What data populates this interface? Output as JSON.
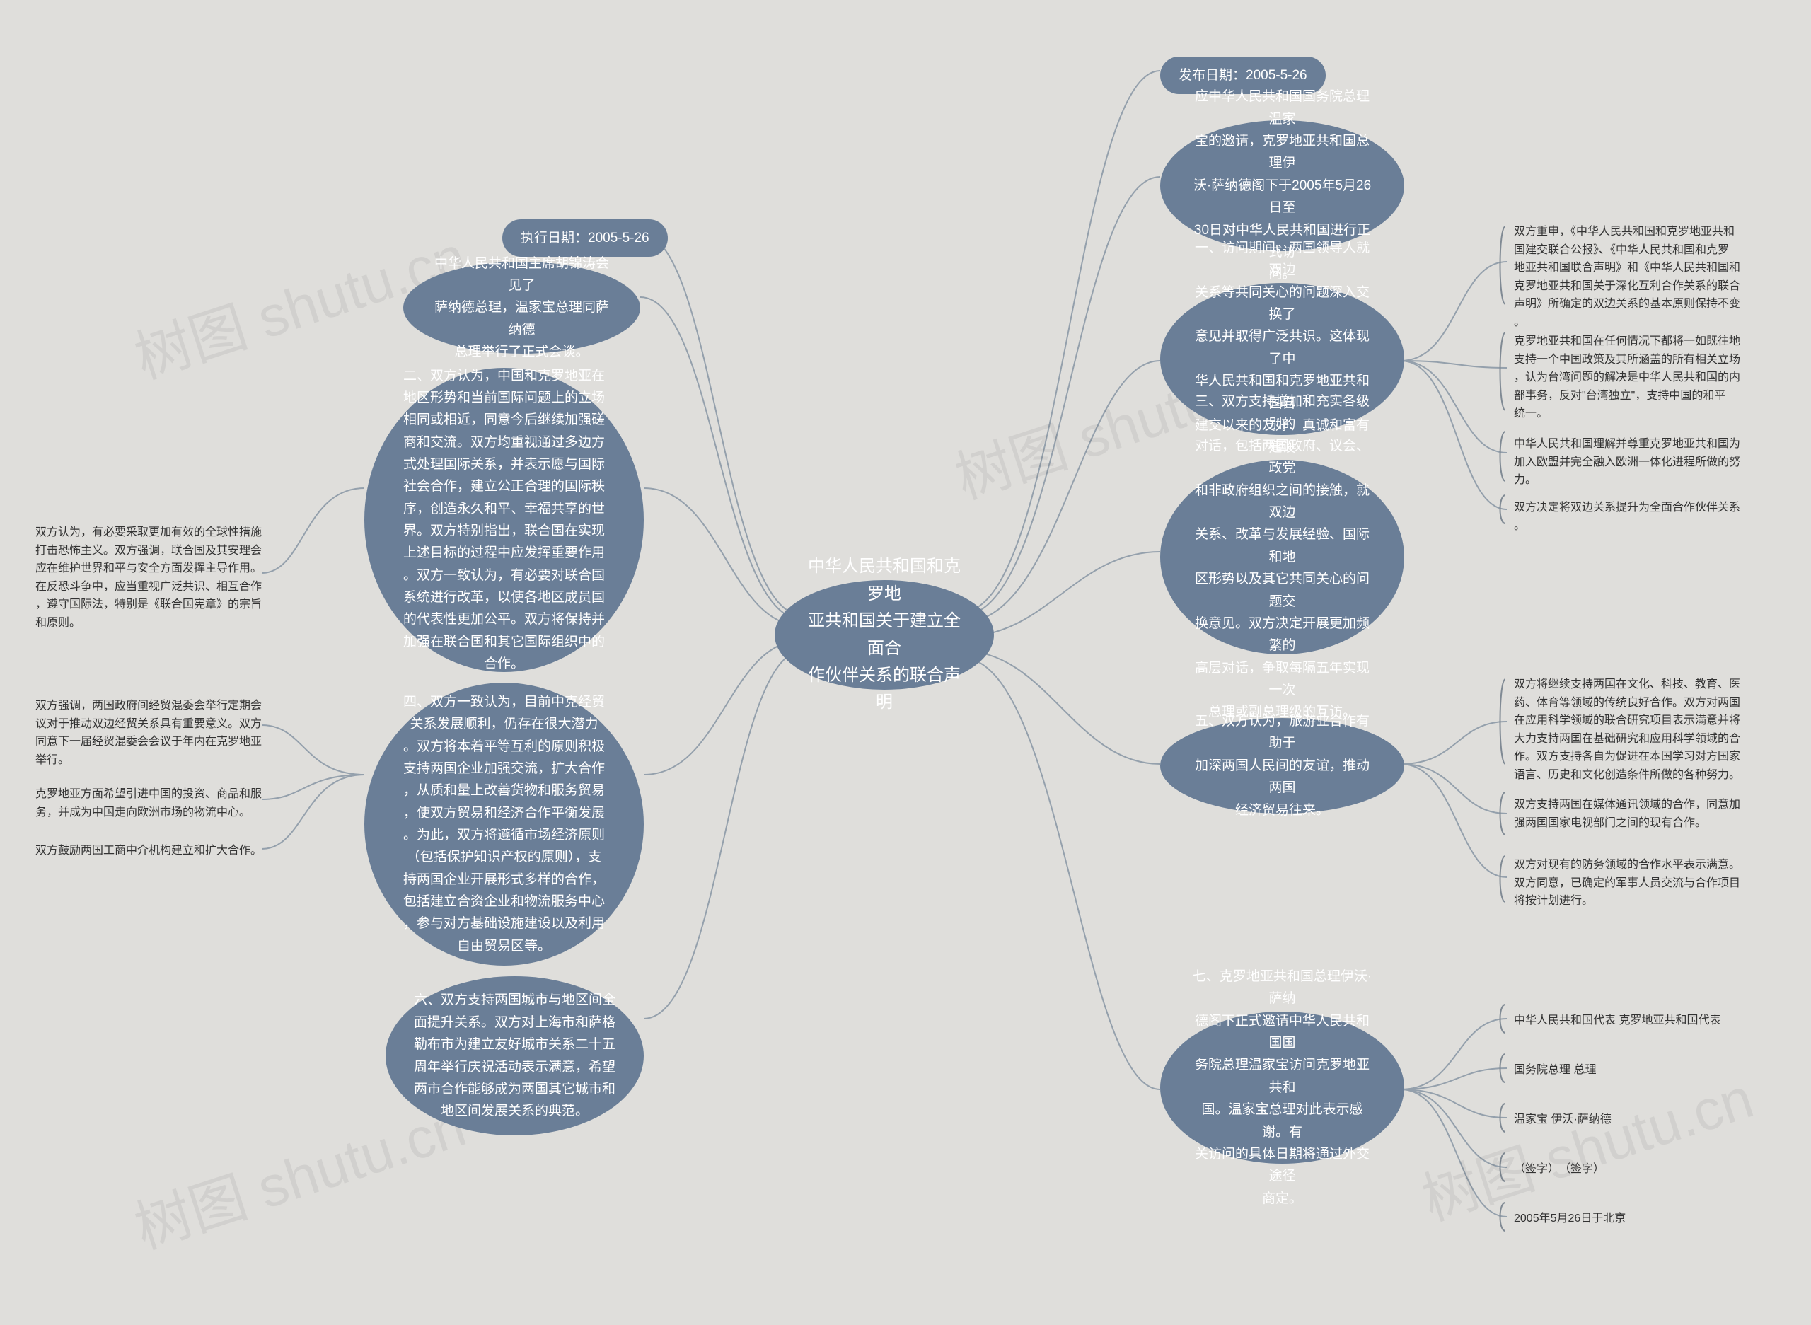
{
  "colors": {
    "bg": "#dfdedb",
    "node": "#6a7e97",
    "node_text": "#ffffff",
    "leaf_text": "#333333",
    "edge": "#94a0ac",
    "bracket": "#808a94",
    "watermark": "rgba(0,0,0,0.06)"
  },
  "center": {
    "text": "中华人民共和国和克罗地\n亚共和国关于建立全面合\n作伙伴关系的联合声明"
  },
  "right": {
    "pub_date": "发布日期：2005-5-26",
    "intro": "应中华人民共和国国务院总理温家\n宝的邀请，克罗地亚共和国总理伊\n沃·萨纳德阁下于2005年5月26日至\n30日对中华人民共和国进行正式访\n问。",
    "sec1": "一、访问期间，两国领导人就双边\n关系等共同关心的问题深入交换了\n意见并取得广泛共识。这体现了中\n华人民共和国和克罗地亚共和国自\n建交以来的友好、真诚和富有建设\n性的关系。",
    "sec1_leaves": [
      "双方重申，《中华人民共和国和克罗地亚共和\n国建交联合公报》、《中华人民共和国和克罗\n地亚共和国联合声明》和《中华人民共和国和\n克罗地亚共和国关于深化互利合作关系的联合\n声明》所确定的双边关系的基本原则保持不变\n。",
      "克罗地亚共和国在任何情况下都将一如既往地\n支持一个中国政策及其所涵盖的所有相关立场\n，认为台湾问题的解决是中华人民共和国的内\n部事务，反对\"台湾独立\"，支持中国的和平\n统一。",
      "中华人民共和国理解并尊重克罗地亚共和国为\n加入欧盟并完全融入欧洲一体化进程所做的努\n力。",
      "双方决定将双边关系提升为全面合作伙伴关系\n。"
    ],
    "sec3": "三、双方支持增加和充实各级别的\n对话，包括两国政府、议会、政党\n和非政府组织之间的接触，就双边\n关系、改革与发展经验、国际和地\n区形势以及其它共同关心的问题交\n换意见。双方决定开展更加频繁的\n高层对话，争取每隔五年实现一次\n总理或副总理级的互访。",
    "sec5": "五、双方认为，旅游业合作有助于\n加深两国人民间的友谊，推动两国\n经济贸易往来。",
    "sec5_leaves": [
      "双方将继续支持两国在文化、科技、教育、医\n药、体育等领域的传统良好合作。双方对两国\n在应用科学领域的联合研究项目表示满意并将\n大力支持两国在基础研究和应用科学领域的合\n作。双方支持各自为促进在本国学习对方国家\n语言、历史和文化创造条件所做的各种努力。",
      "双方支持两国在媒体通讯领域的合作，同意加\n强两国国家电视部门之间的现有合作。",
      "双方对现有的防务领域的合作水平表示满意。\n双方同意，已确定的军事人员交流与合作项目\n将按计划进行。"
    ],
    "sec7": "七、克罗地亚共和国总理伊沃·萨纳\n德阁下正式邀请中华人民共和国国\n务院总理温家宝访问克罗地亚共和\n国。温家宝总理对此表示感谢。有\n关访问的具体日期将通过外交途径\n商定。",
    "sec7_leaves": [
      "中华人民共和国代表 克罗地亚共和国代表",
      "国务院总理 总理",
      "温家宝 伊沃·萨纳德",
      "（签字）　（签字）",
      "2005年5月26日于北京"
    ]
  },
  "left": {
    "exec_date": "执行日期：2005-5-26",
    "meet": "中华人民共和国主席胡锦涛会见了\n萨纳德总理，温家宝总理同萨纳德\n总理举行了正式会谈。",
    "sec2": "二、双方认为，中国和克罗地亚在\n地区形势和当前国际问题上的立场\n相同或相近，同意今后继续加强磋\n商和交流。双方均重视通过多边方\n式处理国际关系，并表示愿与国际\n社会合作，建立公正合理的国际秩\n序，创造永久和平、幸福共享的世\n界。双方特别指出，联合国在实现\n上述目标的过程中应发挥重要作用\n。双方一致认为，有必要对联合国\n系统进行改革，以使各地区成员国\n的代表性更加公平。双方将保持并\n加强在联合国和其它国际组织中的\n合作。",
    "sec2_leaf": "双方认为，有必要采取更加有效的全球性措施\n打击恐怖主义。双方强调，联合国及其安理会\n应在维护世界和平与安全方面发挥主导作用。\n在反恐斗争中，应当重视广泛共识、相互合作\n，遵守国际法，特别是《联合国宪章》的宗旨\n和原则。",
    "sec4": "四、双方一致认为，目前中克经贸\n关系发展顺利，仍存在很大潜力\n。双方将本着平等互利的原则积极\n支持两国企业加强交流，扩大合作\n，从质和量上改善货物和服务贸易\n，使双方贸易和经济合作平衡发展\n。为此，双方将遵循市场经济原则\n（包括保护知识产权的原则），支\n持两国企业开展形式多样的合作，\n包括建立合资企业和物流服务中心\n，参与对方基础设施建设以及利用\n自由贸易区等。",
    "sec4_leaves": [
      "双方强调，两国政府间经贸混委会举行定期会\n议对于推动双边经贸关系具有重要意义。双方\n同意下一届经贸混委会会议于年内在克罗地亚\n举行。",
      "克罗地亚方面希望引进中国的投资、商品和服\n务，并成为中国走向欧洲市场的物流中心。",
      "双方鼓励两国工商中介机构建立和扩大合作。"
    ],
    "sec6": "六、双方支持两国城市与地区间全\n面提升关系。双方对上海市和萨格\n勒布市为建立友好城市关系二十五\n周年举行庆祝活动表示满意，希望\n两市合作能够成为两国其它城市和\n地区间发展关系的典范。"
  },
  "watermark": "树图 shutu.cn"
}
